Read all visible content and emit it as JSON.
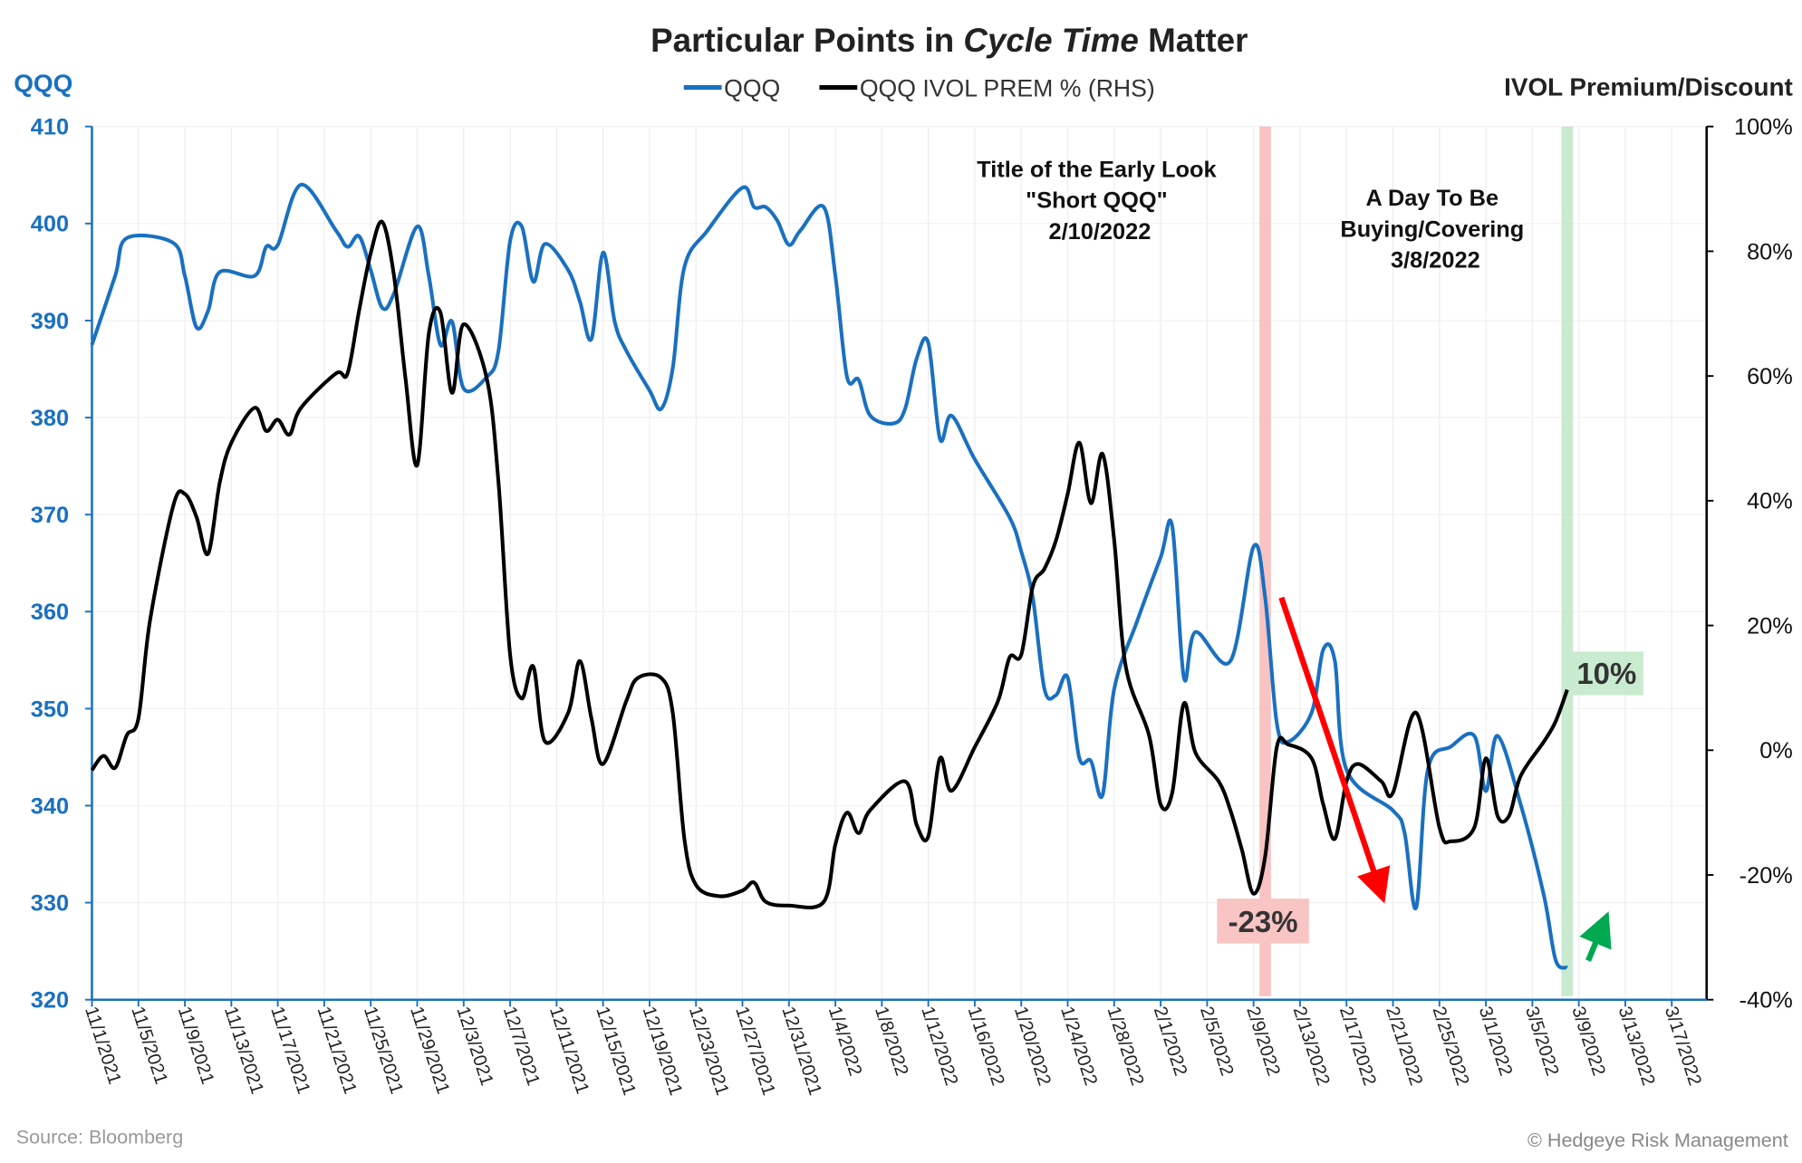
{
  "chart_data": {
    "type": "line",
    "title_parts": [
      "Particular Points in ",
      "Cycle Time",
      " Matter"
    ],
    "left_axis_label": "QQQ",
    "right_axis_label": "IVOL Premium/Discount",
    "legend": [
      "QQQ",
      "QQQ IVOL PREM % (RHS)"
    ],
    "legend_placement": "top-center",
    "grid": true,
    "colors": {
      "qqq": "#1a70c0",
      "ivol": "#000000",
      "red_band": "#f7b9b9",
      "green_band": "#bfe6c8",
      "down_arrow": "#ff0000",
      "up_arrow": "#00a850"
    },
    "xlim": [
      "2021-11-01",
      "2022-03-20"
    ],
    "ylim_left": [
      320,
      410
    ],
    "ylim_right": [
      -40,
      100
    ],
    "left_ticks": [
      "320",
      "330",
      "340",
      "350",
      "360",
      "370",
      "380",
      "390",
      "400",
      "410"
    ],
    "right_ticks": [
      "-40%",
      "-20%",
      "0%",
      "20%",
      "40%",
      "60%",
      "80%",
      "100%"
    ],
    "x_ticks": [
      "11/1/2021",
      "11/5/2021",
      "11/9/2021",
      "11/13/2021",
      "11/17/2021",
      "11/21/2021",
      "11/25/2021",
      "11/29/2021",
      "12/3/2021",
      "12/7/2021",
      "12/11/2021",
      "12/15/2021",
      "12/19/2021",
      "12/23/2021",
      "12/27/2021",
      "12/31/2021",
      "1/4/2022",
      "1/8/2022",
      "1/12/2022",
      "1/16/2022",
      "1/20/2022",
      "1/24/2022",
      "1/28/2022",
      "2/1/2022",
      "2/5/2022",
      "2/9/2022",
      "2/13/2022",
      "2/17/2022",
      "2/21/2022",
      "2/25/2022",
      "3/1/2022",
      "3/5/2022",
      "3/9/2022",
      "3/13/2022",
      "3/17/2022"
    ],
    "series": [
      {
        "name": "QQQ",
        "axis": "left",
        "points": [
          [
            "2021-11-01",
            387.5
          ],
          [
            "2021-11-03",
            394.6
          ],
          [
            "2021-11-04",
            398.5
          ],
          [
            "2021-11-08",
            398
          ],
          [
            "2021-11-09",
            394.6
          ],
          [
            "2021-11-10",
            389.3
          ],
          [
            "2021-11-11",
            391
          ],
          [
            "2021-11-12",
            395
          ],
          [
            "2021-11-15",
            394.6
          ],
          [
            "2021-11-16",
            397.6
          ],
          [
            "2021-11-17",
            397.8
          ],
          [
            "2021-11-19",
            404
          ],
          [
            "2021-11-22",
            399.3
          ],
          [
            "2021-11-23",
            397.6
          ],
          [
            "2021-11-24",
            398.7
          ],
          [
            "2021-11-25",
            395.2
          ],
          [
            "2021-11-26",
            391.3
          ],
          [
            "2021-11-27",
            392.8
          ],
          [
            "2021-11-29",
            399.7
          ],
          [
            "2021-11-30",
            394.6
          ],
          [
            "2021-12-01",
            387.5
          ],
          [
            "2021-12-02",
            389.9
          ],
          [
            "2021-12-03",
            383
          ],
          [
            "2021-12-05",
            384.2
          ],
          [
            "2021-12-06",
            386.9
          ],
          [
            "2021-12-07",
            398.2
          ],
          [
            "2021-12-08",
            399.7
          ],
          [
            "2021-12-09",
            394
          ],
          [
            "2021-12-10",
            397.9
          ],
          [
            "2021-12-12",
            395.2
          ],
          [
            "2021-12-13",
            392
          ],
          [
            "2021-12-14",
            388.1
          ],
          [
            "2021-12-15",
            397
          ],
          [
            "2021-12-16",
            389.9
          ],
          [
            "2021-12-17",
            386.9
          ],
          [
            "2021-12-19",
            382.8
          ],
          [
            "2021-12-20",
            380.9
          ],
          [
            "2021-12-21",
            385.1
          ],
          [
            "2021-12-22",
            395.5
          ],
          [
            "2021-12-24",
            399.3
          ],
          [
            "2021-12-27",
            403.7
          ],
          [
            "2021-12-28",
            401.7
          ],
          [
            "2021-12-29",
            401.7
          ],
          [
            "2021-12-30",
            400.3
          ],
          [
            "2021-12-31",
            397.8
          ],
          [
            "2022-01-01",
            399.3
          ],
          [
            "2022-01-03",
            401.7
          ],
          [
            "2022-01-04",
            394.6
          ],
          [
            "2022-01-05",
            384.2
          ],
          [
            "2022-01-06",
            383.9
          ],
          [
            "2022-01-07",
            380.2
          ],
          [
            "2022-01-09",
            379.4
          ],
          [
            "2022-01-10",
            380.9
          ],
          [
            "2022-01-11",
            386.1
          ],
          [
            "2022-01-12",
            387.7
          ],
          [
            "2022-01-13",
            377.8
          ],
          [
            "2022-01-14",
            380.2
          ],
          [
            "2022-01-16",
            375.7
          ],
          [
            "2022-01-19",
            369.7
          ],
          [
            "2022-01-20",
            366.2
          ],
          [
            "2022-01-21",
            361.4
          ],
          [
            "2022-01-22",
            352
          ],
          [
            "2022-01-23",
            351.4
          ],
          [
            "2022-01-24",
            353.2
          ],
          [
            "2022-01-25",
            344.9
          ],
          [
            "2022-01-26",
            344.6
          ],
          [
            "2022-01-27",
            341.1
          ],
          [
            "2022-01-28",
            352
          ],
          [
            "2022-01-30",
            359.1
          ],
          [
            "2022-02-01",
            365.6
          ],
          [
            "2022-02-02",
            368.8
          ],
          [
            "2022-02-03",
            353.2
          ],
          [
            "2022-02-04",
            357.9
          ],
          [
            "2022-02-07",
            354.9
          ],
          [
            "2022-02-09",
            366.7
          ],
          [
            "2022-02-10",
            361.4
          ],
          [
            "2022-02-11",
            348.5
          ],
          [
            "2022-02-12",
            346.6
          ],
          [
            "2022-02-14",
            349.6
          ],
          [
            "2022-02-15",
            356.1
          ],
          [
            "2022-02-16",
            354.9
          ],
          [
            "2022-02-17",
            343.7
          ],
          [
            "2022-02-21",
            339.5
          ],
          [
            "2022-02-22",
            337.2
          ],
          [
            "2022-02-23",
            329.5
          ],
          [
            "2022-02-24",
            343.7
          ],
          [
            "2022-02-26",
            346.1
          ],
          [
            "2022-02-28",
            347.2
          ],
          [
            "2022-03-01",
            341.5
          ],
          [
            "2022-03-02",
            347.2
          ],
          [
            "2022-03-04",
            340.1
          ],
          [
            "2022-03-06",
            330.7
          ],
          [
            "2022-03-07",
            324.1
          ],
          [
            "2022-03-08",
            323.3
          ]
        ]
      },
      {
        "name": "QQQ IVOL PREM % (RHS)",
        "axis": "right",
        "points": [
          [
            "2021-11-01",
            -3.2
          ],
          [
            "2021-11-02",
            -0.9
          ],
          [
            "2021-11-03",
            -2.8
          ],
          [
            "2021-11-04",
            2.4
          ],
          [
            "2021-11-05",
            5.1
          ],
          [
            "2021-11-06",
            20.8
          ],
          [
            "2021-11-08",
            39.2
          ],
          [
            "2021-11-09",
            41.1
          ],
          [
            "2021-11-10",
            37.4
          ],
          [
            "2021-11-11",
            31.5
          ],
          [
            "2021-11-12",
            42.9
          ],
          [
            "2021-11-13",
            49.3
          ],
          [
            "2021-11-15",
            54.9
          ],
          [
            "2021-11-16",
            51.2
          ],
          [
            "2021-11-17",
            53
          ],
          [
            "2021-11-18",
            50.6
          ],
          [
            "2021-11-19",
            54.9
          ],
          [
            "2021-11-22",
            60.4
          ],
          [
            "2021-11-23",
            60.4
          ],
          [
            "2021-11-24",
            70.5
          ],
          [
            "2021-11-25",
            79.7
          ],
          [
            "2021-11-26",
            84.7
          ],
          [
            "2021-11-27",
            76.1
          ],
          [
            "2021-11-28",
            59.5
          ],
          [
            "2021-11-29",
            45.7
          ],
          [
            "2021-11-30",
            66.8
          ],
          [
            "2021-12-01",
            70.2
          ],
          [
            "2021-12-02",
            57.3
          ],
          [
            "2021-12-03",
            68.3
          ],
          [
            "2021-12-05",
            59.5
          ],
          [
            "2021-12-06",
            42.9
          ],
          [
            "2021-12-07",
            15.3
          ],
          [
            "2021-12-08",
            8.3
          ],
          [
            "2021-12-09",
            13.4
          ],
          [
            "2021-12-10",
            1.4
          ],
          [
            "2021-12-12",
            6
          ],
          [
            "2021-12-13",
            14.3
          ],
          [
            "2021-12-14",
            5.1
          ],
          [
            "2021-12-15",
            -2.2
          ],
          [
            "2021-12-17",
            7.9
          ],
          [
            "2021-12-18",
            11.6
          ],
          [
            "2021-12-20",
            11.6
          ],
          [
            "2021-12-21",
            6
          ],
          [
            "2021-12-22",
            -14.2
          ],
          [
            "2021-12-23",
            -21.6
          ],
          [
            "2021-12-25",
            -23.4
          ],
          [
            "2021-12-27",
            -22.5
          ],
          [
            "2021-12-28",
            -21.2
          ],
          [
            "2021-12-29",
            -24.3
          ],
          [
            "2021-12-31",
            -24.9
          ],
          [
            "2022-01-03",
            -24.3
          ],
          [
            "2022-01-04",
            -15.1
          ],
          [
            "2022-01-05",
            -10
          ],
          [
            "2022-01-06",
            -13.3
          ],
          [
            "2022-01-07",
            -9.6
          ],
          [
            "2022-01-10",
            -5
          ],
          [
            "2022-01-11",
            -12
          ],
          [
            "2022-01-12",
            -13.8
          ],
          [
            "2022-01-13",
            -1.3
          ],
          [
            "2022-01-14",
            -6.5
          ],
          [
            "2022-01-16",
            0.5
          ],
          [
            "2022-01-18",
            7.9
          ],
          [
            "2022-01-19",
            14.9
          ],
          [
            "2022-01-20",
            15.3
          ],
          [
            "2022-01-21",
            26.3
          ],
          [
            "2022-01-22",
            29.1
          ],
          [
            "2022-01-23",
            33.7
          ],
          [
            "2022-01-24",
            41.1
          ],
          [
            "2022-01-25",
            49.3
          ],
          [
            "2022-01-26",
            39.6
          ],
          [
            "2022-01-27",
            47.5
          ],
          [
            "2022-01-28",
            33.7
          ],
          [
            "2022-01-29",
            13.4
          ],
          [
            "2022-01-31",
            2.4
          ],
          [
            "2022-02-01",
            -8.7
          ],
          [
            "2022-02-02",
            -6.8
          ],
          [
            "2022-02-03",
            7.5
          ],
          [
            "2022-02-04",
            -0.4
          ],
          [
            "2022-02-06",
            -5
          ],
          [
            "2022-02-07",
            -9.6
          ],
          [
            "2022-02-08",
            -16
          ],
          [
            "2022-02-09",
            -23
          ],
          [
            "2022-02-10",
            -17
          ],
          [
            "2022-02-11",
            0.5
          ],
          [
            "2022-02-12",
            0.9
          ],
          [
            "2022-02-14",
            -1.3
          ],
          [
            "2022-02-15",
            -8.7
          ],
          [
            "2022-02-16",
            -14.2
          ],
          [
            "2022-02-17",
            -5
          ],
          [
            "2022-02-18",
            -2.2
          ],
          [
            "2022-02-20",
            -5
          ],
          [
            "2022-02-21",
            -6.8
          ],
          [
            "2022-02-23",
            6
          ],
          [
            "2022-02-25",
            -12.4
          ],
          [
            "2022-02-26",
            -14.6
          ],
          [
            "2022-02-28",
            -12.4
          ],
          [
            "2022-03-01",
            -1.3
          ],
          [
            "2022-03-02",
            -10.5
          ],
          [
            "2022-03-03",
            -10.5
          ],
          [
            "2022-03-04",
            -4.1
          ],
          [
            "2022-03-06",
            1.4
          ],
          [
            "2022-03-07",
            4.6
          ],
          [
            "2022-03-08",
            9.7
          ]
        ]
      }
    ],
    "highlights": [
      {
        "date": "2022-02-10",
        "color": "red_band"
      },
      {
        "date": "2022-03-08",
        "color": "green_band"
      }
    ],
    "annotations": {
      "early_look": [
        "Title of the Early Look",
        "\"Short QQQ\"",
        "2/10/2022"
      ],
      "buy_day": [
        "A Day To Be",
        "Buying/Covering",
        "3/8/2022"
      ],
      "low_label": "-23%",
      "high_label": "10%"
    },
    "source": "Source: Bloomberg",
    "credit": "© Hedgeye Risk Management"
  }
}
